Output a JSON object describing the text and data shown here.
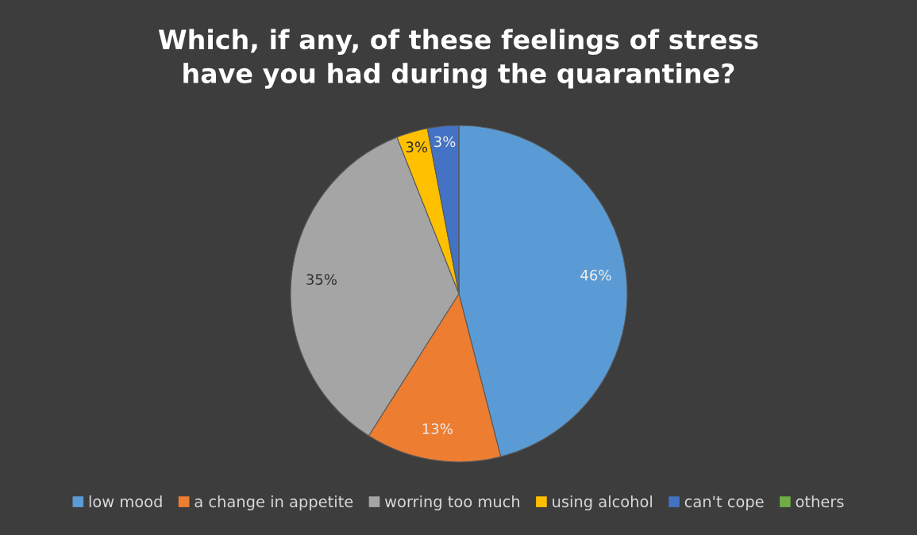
{
  "chart_data": {
    "type": "pie",
    "title": "Which, if any, of these feelings of stress\nhave you had during the quarantine?",
    "categories": [
      "low mood",
      "a change in appetite",
      "worring too much",
      "using alcohol",
      "can't cope",
      "others"
    ],
    "values": [
      46,
      13,
      35,
      3,
      3,
      0
    ],
    "colors": [
      "#5b9bd5",
      "#ed7d31",
      "#a5a5a5",
      "#ffc000",
      "#4472c4",
      "#70ad47"
    ],
    "value_labels": [
      "46%",
      "13%",
      "35%",
      "3%",
      "3%",
      null
    ],
    "legend": "bottom"
  }
}
